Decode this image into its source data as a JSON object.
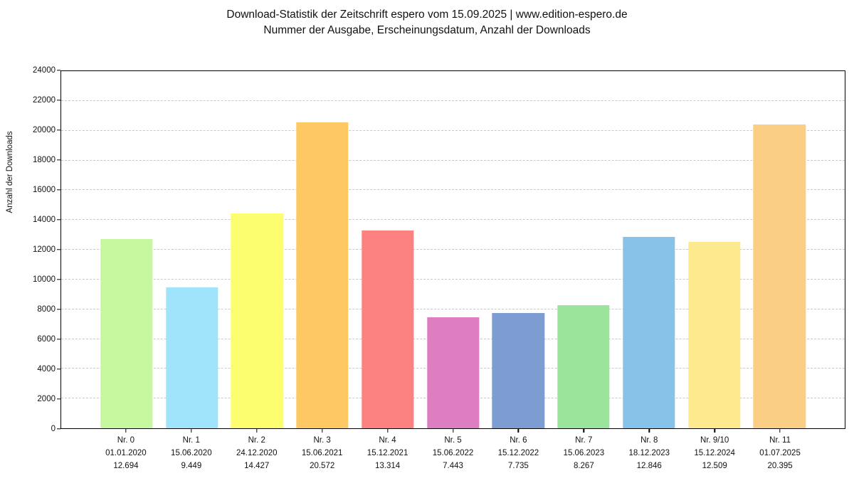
{
  "title": {
    "line1": "Download-Statistik der Zeitschrift espero vom 15.09.2025 | www.edition-espero.de",
    "line2": "Nummer der Ausgabe, Erscheinungsdatum, Anzahl der Downloads"
  },
  "chart_data": {
    "type": "bar",
    "title": "Download-Statistik der Zeitschrift espero vom 15.09.2025 | www.edition-espero.de",
    "subtitle": "Nummer der Ausgabe, Erscheinungsdatum, Anzahl der Downloads",
    "xlabel": "",
    "ylabel": "Anzahl der Downloads",
    "ylim": [
      0,
      24000
    ],
    "ytick_step": 2000,
    "yticks": [
      0,
      2000,
      4000,
      6000,
      8000,
      10000,
      12000,
      14000,
      16000,
      18000,
      20000,
      22000,
      24000
    ],
    "grid": "horizontal-dashed",
    "legend": "none",
    "categories": [
      "Nr. 0",
      "Nr. 1",
      "Nr. 2",
      "Nr. 3",
      "Nr. 4",
      "Nr. 5",
      "Nr. 6",
      "Nr. 7",
      "Nr. 8",
      "Nr. 9/10",
      "Nr. 11"
    ],
    "dates": [
      "01.01.2020",
      "15.06.2020",
      "24.12.2020",
      "15.06.2021",
      "15.12.2021",
      "15.06.2022",
      "15.12.2022",
      "15.06.2023",
      "18.12.2023",
      "15.12.2024",
      "01.07.2025"
    ],
    "values": [
      12694,
      9449,
      14427,
      20572,
      13314,
      7443,
      7735,
      8267,
      12846,
      12509,
      20395
    ],
    "value_labels": [
      "12.694",
      "9.449",
      "14.427",
      "20.572",
      "13.314",
      "7.443",
      "7.735",
      "8.267",
      "12.846",
      "12.509",
      "20.395"
    ],
    "bar_colors": [
      "#c6f79e",
      "#a0e4fb",
      "#fdfd70",
      "#fec964",
      "#fc8181",
      "#dc7ec0",
      "#7c9cd2",
      "#9ae49b",
      "#87c3e8",
      "#fde98e",
      "#fbce85"
    ],
    "grid_color": "#c9c9c9",
    "axis_color": "#000000",
    "background_color": "#ffffff"
  }
}
